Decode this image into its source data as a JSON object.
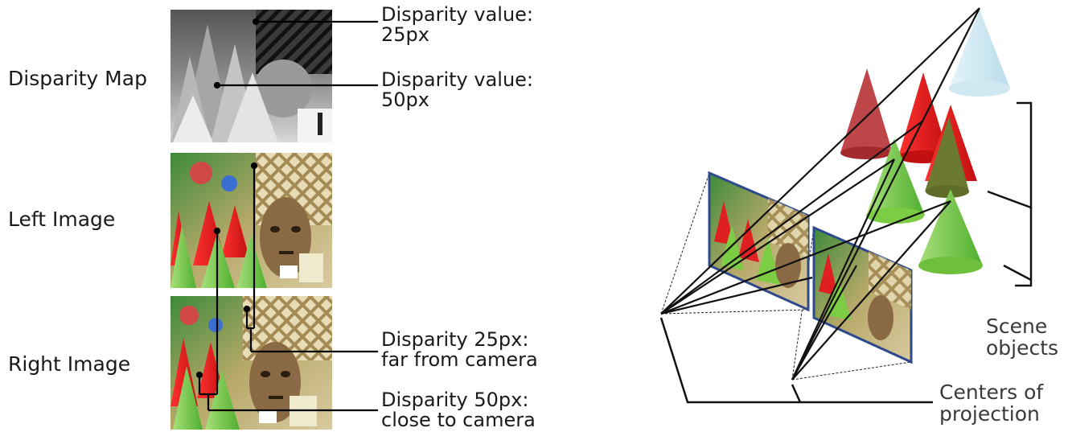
{
  "rows": {
    "disparity_map": "Disparity Map",
    "left_image": "Left Image",
    "right_image": "Right Image"
  },
  "annotations": {
    "disp_25_line1": "Disparity value:",
    "disp_25_line2": "25px",
    "disp_50_line1": "Disparity value:",
    "disp_50_line2": "50px",
    "far_line1": "Disparity 25px:",
    "far_line2": "far from camera",
    "close_line1": "Disparity 50px:",
    "close_line2": "close to camera"
  },
  "scene_labels": {
    "scene_objects_line1": "Scene",
    "scene_objects_line2": "objects",
    "centers_line1": "Centers of",
    "centers_line2": "projection"
  },
  "colors": {
    "frame_border": "#2e4a8c",
    "cone_red": "#e02020",
    "cone_dark_red": "#b8363a",
    "cone_green": "#7ccc44",
    "cone_olive": "#6b7a30",
    "cone_light_blue": "#cfe8f2",
    "label_text": "#3a3a3a"
  }
}
